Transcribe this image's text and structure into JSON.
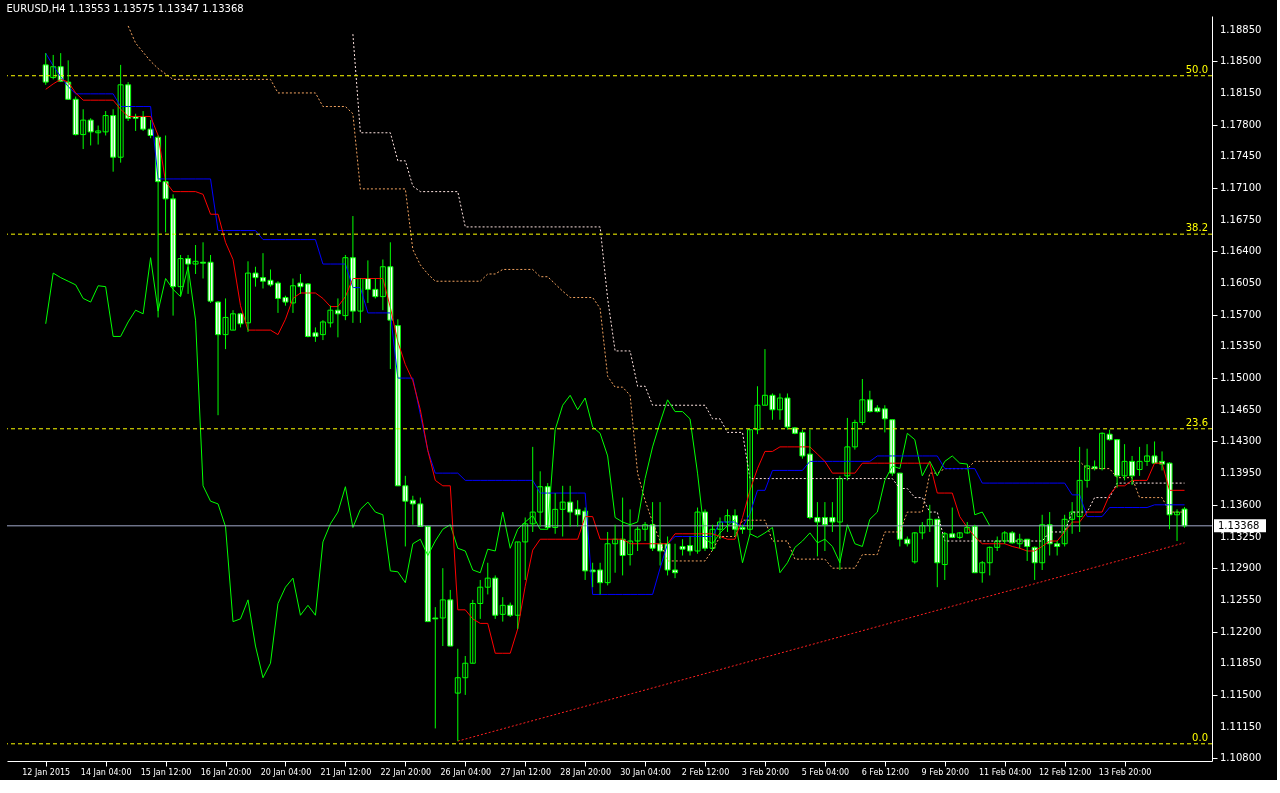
{
  "chart_data": {
    "type": "candlestick",
    "title": "EURUSD,H4  1.13553 1.13575 1.13347 1.13368",
    "categories": [
      "12 Jan 2015",
      null,
      null,
      null,
      null,
      null,
      null,
      null,
      "14 Jan 04:00",
      null,
      null,
      null,
      null,
      null,
      null,
      null,
      "15 Jan 12:00",
      null,
      null,
      null,
      null,
      null,
      null,
      null,
      "16 Jan 20:00",
      null,
      null,
      null,
      null,
      null,
      null,
      null,
      "20 Jan 04:00",
      null,
      null,
      null,
      null,
      null,
      null,
      null,
      "21 Jan 12:00",
      null,
      null,
      null,
      null,
      null,
      null,
      null,
      "22 Jan 20:00",
      null,
      null,
      null,
      null,
      null,
      null,
      null,
      "26 Jan 04:00",
      null,
      null,
      null,
      null,
      null,
      null,
      null,
      "27 Jan 12:00",
      null,
      null,
      null,
      null,
      null,
      null,
      null,
      "28 Jan 20:00",
      null,
      null,
      null,
      null,
      null,
      null,
      null,
      "30 Jan 04:00",
      null,
      null,
      null,
      null,
      null,
      null,
      null,
      "2 Feb 12:00",
      null,
      null,
      null,
      null,
      null,
      null,
      null,
      "3 Feb 20:00",
      null,
      null,
      null,
      null,
      null,
      null,
      null,
      "5 Feb 04:00",
      null,
      null,
      null,
      null,
      null,
      null,
      null,
      "6 Feb 12:00",
      null,
      null,
      null,
      null,
      null,
      null,
      null,
      "9 Feb 20:00",
      null,
      null,
      null,
      null,
      null,
      null,
      null,
      "11 Feb 04:00",
      null,
      null,
      null,
      null,
      null,
      null,
      null,
      "12 Feb 12:00",
      null,
      null,
      null,
      null,
      null,
      null,
      null,
      "13 Feb 20:00",
      null,
      null,
      null,
      null,
      null,
      null,
      null,
      null
    ],
    "ohlc": [
      [
        1.1846,
        1.1859,
        1.1824,
        1.1827
      ],
      [
        1.1832,
        1.1857,
        1.183,
        1.1844
      ],
      [
        1.1844,
        1.1859,
        1.1827,
        1.1828
      ],
      [
        1.1827,
        1.1851,
        1.1808,
        1.1808
      ],
      [
        1.1808,
        1.1811,
        1.1768,
        1.1769
      ],
      [
        1.1769,
        1.1797,
        1.1753,
        1.1785
      ],
      [
        1.1785,
        1.1787,
        1.1757,
        1.1772
      ],
      [
        1.1771,
        1.1779,
        1.1758,
        1.1773
      ],
      [
        1.1772,
        1.1795,
        1.1768,
        1.179
      ],
      [
        1.179,
        1.1797,
        1.1728,
        1.1744
      ],
      [
        1.1744,
        1.1846,
        1.1738,
        1.1824
      ],
      [
        1.1824,
        1.1827,
        1.1784,
        1.1787
      ],
      [
        1.1789,
        1.1792,
        1.1773,
        1.1787
      ],
      [
        1.1789,
        1.1795,
        1.1773,
        1.1775
      ],
      [
        1.1775,
        1.1785,
        1.1765,
        1.1768
      ],
      [
        1.1766,
        1.1768,
        1.1567,
        1.1717
      ],
      [
        1.1717,
        1.1768,
        1.1661,
        1.1698
      ],
      [
        1.1698,
        1.1703,
        1.1569,
        1.1601
      ],
      [
        1.1601,
        1.1636,
        1.1591,
        1.1632
      ],
      [
        1.1632,
        1.1636,
        1.1593,
        1.1626
      ],
      [
        1.1626,
        1.1647,
        1.1615,
        1.1629
      ],
      [
        1.1628,
        1.165,
        1.161,
        1.1627
      ],
      [
        1.1628,
        1.1636,
        1.1583,
        1.1585
      ],
      [
        1.1584,
        1.1585,
        1.1459,
        1.1548
      ],
      [
        1.1548,
        1.1588,
        1.1532,
        1.1567
      ],
      [
        1.1553,
        1.1575,
        1.1553,
        1.1571
      ],
      [
        1.1571,
        1.1572,
        1.1556,
        1.156
      ],
      [
        1.1561,
        1.1629,
        1.1551,
        1.1616
      ],
      [
        1.1616,
        1.1623,
        1.1601,
        1.1611
      ],
      [
        1.1611,
        1.1638,
        1.1599,
        1.1607
      ],
      [
        1.1608,
        1.162,
        1.1601,
        1.1603
      ],
      [
        1.1605,
        1.1607,
        1.1572,
        1.1588
      ],
      [
        1.1589,
        1.1591,
        1.158,
        1.1584
      ],
      [
        1.1583,
        1.161,
        1.1572,
        1.1602
      ],
      [
        1.1605,
        1.1615,
        1.1593,
        1.1601
      ],
      [
        1.1604,
        1.1605,
        1.1545,
        1.1546
      ],
      [
        1.155,
        1.1556,
        1.154,
        1.1546
      ],
      [
        1.1548,
        1.1564,
        1.1542,
        1.1562
      ],
      [
        1.1561,
        1.158,
        1.1556,
        1.1575
      ],
      [
        1.1575,
        1.1588,
        1.1545,
        1.1571
      ],
      [
        1.1569,
        1.1636,
        1.1564,
        1.1633
      ],
      [
        1.1633,
        1.1679,
        1.1561,
        1.1574
      ],
      [
        1.1574,
        1.161,
        1.1561,
        1.161
      ],
      [
        1.161,
        1.163,
        1.1583,
        1.1598
      ],
      [
        1.1598,
        1.161,
        1.1588,
        1.159
      ],
      [
        1.159,
        1.1631,
        1.1575,
        1.1623
      ],
      [
        1.1623,
        1.165,
        1.151,
        1.1564
      ],
      [
        1.1558,
        1.1565,
        1.1381,
        1.1381
      ],
      [
        1.1381,
        1.1392,
        1.1314,
        1.1364
      ],
      [
        1.1365,
        1.137,
        1.1338,
        1.1361
      ],
      [
        1.1361,
        1.1368,
        1.1336,
        1.1336
      ],
      [
        1.1336,
        1.1337,
        1.1231,
        1.1231
      ],
      [
        1.1235,
        1.1247,
        1.1113,
        1.1234
      ],
      [
        1.1235,
        1.129,
        1.1204,
        1.1255
      ],
      [
        1.1255,
        1.1266,
        1.1204,
        1.1204
      ],
      [
        1.1152,
        1.1201,
        1.1099,
        1.1169
      ],
      [
        1.1169,
        1.1193,
        1.115,
        1.1185
      ],
      [
        1.1185,
        1.1255,
        1.1185,
        1.1251
      ],
      [
        1.1251,
        1.1277,
        1.1234,
        1.1269
      ],
      [
        1.1269,
        1.1296,
        1.1261,
        1.1279
      ],
      [
        1.1279,
        1.1282,
        1.1234,
        1.1238
      ],
      [
        1.1239,
        1.1258,
        1.1231,
        1.1249
      ],
      [
        1.1249,
        1.1252,
        1.1236,
        1.1238
      ],
      [
        1.1238,
        1.1319,
        1.1223,
        1.1319
      ],
      [
        1.1319,
        1.1346,
        1.1277,
        1.1339
      ],
      [
        1.1339,
        1.1424,
        1.133,
        1.1352
      ],
      [
        1.1352,
        1.1397,
        1.1336,
        1.138
      ],
      [
        1.138,
        1.1384,
        1.1333,
        1.1335
      ],
      [
        1.1335,
        1.1373,
        1.1328,
        1.1355
      ],
      [
        1.1355,
        1.1381,
        1.1325,
        1.1363
      ],
      [
        1.1363,
        1.1381,
        1.1336,
        1.1352
      ],
      [
        1.1355,
        1.1365,
        1.1336,
        1.1349
      ],
      [
        1.1353,
        1.1357,
        1.1277,
        1.1287
      ],
      [
        1.1288,
        1.1296,
        1.1269,
        1.1286
      ],
      [
        1.1288,
        1.1296,
        1.1261,
        1.1274
      ],
      [
        1.1274,
        1.133,
        1.1271,
        1.1317
      ],
      [
        1.1317,
        1.1338,
        1.1285,
        1.1322
      ],
      [
        1.1322,
        1.1368,
        1.1282,
        1.1304
      ],
      [
        1.1305,
        1.1355,
        1.1293,
        1.132
      ],
      [
        1.132,
        1.1336,
        1.1309,
        1.1333
      ],
      [
        1.1333,
        1.1341,
        1.132,
        1.1338
      ],
      [
        1.1338,
        1.1363,
        1.1309,
        1.1312
      ],
      [
        1.1317,
        1.1363,
        1.1293,
        1.1309
      ],
      [
        1.1317,
        1.1325,
        1.1282,
        1.1288
      ],
      [
        1.1288,
        1.1317,
        1.1279,
        1.1285
      ],
      [
        1.1314,
        1.1322,
        1.1304,
        1.1311
      ],
      [
        1.1315,
        1.1325,
        1.1304,
        1.1309
      ],
      [
        1.1309,
        1.1357,
        1.1306,
        1.1352
      ],
      [
        1.1352,
        1.1355,
        1.1309,
        1.1312
      ],
      [
        1.1312,
        1.1338,
        1.1309,
        1.1333
      ],
      [
        1.1333,
        1.1346,
        1.1322,
        1.1341
      ],
      [
        1.1341,
        1.1355,
        1.133,
        1.1348
      ],
      [
        1.1348,
        1.1355,
        1.1325,
        1.1333
      ],
      [
        1.1335,
        1.1338,
        1.1328,
        1.1333
      ],
      [
        1.1333,
        1.1443,
        1.1328,
        1.1443
      ],
      [
        1.1443,
        1.1491,
        1.1438,
        1.147
      ],
      [
        1.147,
        1.1532,
        1.147,
        1.1481
      ],
      [
        1.1481,
        1.1483,
        1.1454,
        1.1465
      ],
      [
        1.1465,
        1.1483,
        1.1454,
        1.1478
      ],
      [
        1.1478,
        1.1483,
        1.1443,
        1.1446
      ],
      [
        1.1445,
        1.1446,
        1.1438,
        1.1439
      ],
      [
        1.144,
        1.1443,
        1.1411,
        1.1414
      ],
      [
        1.1416,
        1.1443,
        1.1344,
        1.1346
      ],
      [
        1.1346,
        1.1363,
        1.1303,
        1.1341
      ],
      [
        1.1346,
        1.1363,
        1.1309,
        1.1338
      ],
      [
        1.1346,
        1.1363,
        1.133,
        1.1341
      ],
      [
        1.1341,
        1.1392,
        1.1288,
        1.1389
      ],
      [
        1.1392,
        1.1456,
        1.1387,
        1.1424
      ],
      [
        1.1424,
        1.1454,
        1.1421,
        1.1451
      ],
      [
        1.1451,
        1.1499,
        1.1448,
        1.1476
      ],
      [
        1.1476,
        1.1486,
        1.1462,
        1.1463
      ],
      [
        1.1467,
        1.147,
        1.1462,
        1.1463
      ],
      [
        1.1466,
        1.147,
        1.144,
        1.1455
      ],
      [
        1.1454,
        1.1454,
        1.1392,
        1.1395
      ],
      [
        1.1395,
        1.1395,
        1.1314,
        1.1322
      ],
      [
        1.1322,
        1.1325,
        1.1314,
        1.1317
      ],
      [
        1.1297,
        1.133,
        1.1295,
        1.1329
      ],
      [
        1.1329,
        1.1341,
        1.1322,
        1.1337
      ],
      [
        1.1337,
        1.136,
        1.133,
        1.1344
      ],
      [
        1.1344,
        1.1344,
        1.1269,
        1.1296
      ],
      [
        1.1294,
        1.133,
        1.1277,
        1.1328
      ],
      [
        1.1328,
        1.1357,
        1.1324,
        1.1324
      ],
      [
        1.1324,
        1.133,
        1.1322,
        1.1329
      ],
      [
        1.1329,
        1.1341,
        1.1328,
        1.1335
      ],
      [
        1.1336,
        1.1338,
        1.1285,
        1.1285
      ],
      [
        1.1285,
        1.1298,
        1.1274,
        1.1296
      ],
      [
        1.1296,
        1.1314,
        1.1282,
        1.1313
      ],
      [
        1.1313,
        1.1325,
        1.1309,
        1.132
      ],
      [
        1.132,
        1.1331,
        1.1317,
        1.1329
      ],
      [
        1.1329,
        1.1331,
        1.1317,
        1.1318
      ],
      [
        1.1317,
        1.1328,
        1.1312,
        1.1322
      ],
      [
        1.1322,
        1.1322,
        1.1298,
        1.1314
      ],
      [
        1.1313,
        1.1314,
        1.1277,
        1.1296
      ],
      [
        1.1296,
        1.1349,
        1.1288,
        1.1338
      ],
      [
        1.1338,
        1.1352,
        1.1304,
        1.1317
      ],
      [
        1.1317,
        1.132,
        1.1304,
        1.1314
      ],
      [
        1.1317,
        1.1349,
        1.1314,
        1.1344
      ],
      [
        1.1344,
        1.1363,
        1.1328,
        1.1352
      ],
      [
        1.1347,
        1.1424,
        1.133,
        1.1387
      ],
      [
        1.1387,
        1.1422,
        1.1379,
        1.1403
      ],
      [
        1.1402,
        1.1409,
        1.1398,
        1.14
      ],
      [
        1.14,
        1.144,
        1.1398,
        1.1439
      ],
      [
        1.1438,
        1.1443,
        1.1431,
        1.1432
      ],
      [
        1.1432,
        1.1432,
        1.1379,
        1.1392
      ],
      [
        1.1392,
        1.1427,
        1.1387,
        1.1408
      ],
      [
        1.1408,
        1.1414,
        1.1382,
        1.1392
      ],
      [
        1.1399,
        1.1424,
        1.1392,
        1.1408
      ],
      [
        1.1408,
        1.1427,
        1.1403,
        1.1414
      ],
      [
        1.1414,
        1.143,
        1.1406,
        1.1406
      ],
      [
        1.1408,
        1.1419,
        1.1398,
        1.1405
      ],
      [
        1.1406,
        1.1407,
        1.1333,
        1.1349
      ],
      [
        1.1349,
        1.1355,
        1.132,
        1.1352
      ],
      [
        1.13553,
        1.13575,
        1.13347,
        1.13368
      ]
    ],
    "color": "#00ff00",
    "series": [
      {
        "type": "line",
        "color": "#f4a460",
        "line_style": "dotted",
        "values": [
          null,
          null,
          null,
          null,
          null,
          null,
          null,
          null,
          null,
          null,
          null,
          1.1889,
          1.187,
          1.186,
          1.185,
          1.1842,
          1.1836,
          1.183,
          1.183,
          1.183,
          1.183,
          1.183,
          1.183,
          1.183,
          1.183,
          1.183,
          1.183,
          1.183,
          1.183,
          1.183,
          1.183,
          1.1815,
          1.1815,
          1.1815,
          1.1815,
          1.1815,
          1.1815,
          1.18,
          1.18,
          1.18,
          1.18,
          1.1792,
          1.1709,
          1.1709,
          1.1709,
          1.1709,
          1.1709,
          1.1709,
          1.1709,
          1.1642,
          1.1625,
          1.1615,
          1.1607,
          1.1607,
          1.1607,
          1.1607,
          1.1607,
          1.1607,
          1.1607,
          1.1615,
          1.1615,
          1.162,
          1.162,
          1.162,
          1.162,
          1.162,
          1.1612,
          1.1612,
          1.1604,
          1.1596,
          1.1589,
          1.1589,
          1.1589,
          1.1589,
          1.1577,
          1.1502,
          1.149,
          1.149,
          1.1481,
          1.1395,
          1.1365,
          1.1341,
          1.132,
          1.1298,
          1.1298,
          1.1298,
          1.1298,
          1.1298,
          1.1298,
          1.131,
          1.1325,
          1.1325,
          1.1325,
          1.1343,
          1.1343,
          1.1343,
          1.1343,
          1.132,
          1.132,
          1.132,
          1.13,
          1.13,
          1.13,
          1.13,
          1.13,
          1.129,
          1.129,
          1.129,
          1.129,
          1.1305,
          1.1305,
          1.1305,
          1.133,
          1.133,
          1.133,
          1.1352,
          1.1352,
          1.1352,
          1.1395,
          1.1395,
          1.14,
          1.14,
          1.14,
          1.14,
          1.1408,
          1.1408,
          1.1408,
          1.1408,
          1.1408,
          1.1408,
          1.1408,
          1.1408,
          1.1408,
          1.1408,
          1.1408,
          1.1408,
          1.1408,
          1.1408,
          1.1408,
          1.14,
          1.14,
          1.14,
          1.14,
          1.139,
          1.139,
          1.139,
          1.1368,
          1.1368,
          1.1368,
          1.1368,
          1.1352,
          1.1352,
          1.1352
        ]
      },
      {
        "type": "line",
        "color": "#ffe4e1",
        "line_style": "dotted",
        "values": [
          null,
          null,
          null,
          null,
          null,
          null,
          null,
          null,
          null,
          null,
          null,
          null,
          null,
          null,
          null,
          null,
          null,
          null,
          null,
          null,
          null,
          null,
          null,
          null,
          null,
          null,
          null,
          null,
          null,
          null,
          null,
          null,
          null,
          null,
          null,
          null,
          null,
          null,
          null,
          null,
          null,
          1.188,
          1.1771,
          1.1771,
          1.1771,
          1.1771,
          1.1771,
          1.174,
          1.174,
          1.1712,
          1.1706,
          1.1706,
          1.1706,
          1.1706,
          1.1706,
          1.1706,
          1.1667,
          1.1667,
          1.1667,
          1.1667,
          1.1667,
          1.1667,
          1.1667,
          1.1667,
          1.1667,
          1.1667,
          1.1667,
          1.1667,
          1.1667,
          1.1667,
          1.1667,
          1.1667,
          1.1667,
          1.1667,
          1.1667,
          1.1588,
          1.153,
          1.153,
          1.153,
          1.1491,
          1.1491,
          1.147,
          1.147,
          1.147,
          1.147,
          1.147,
          1.147,
          1.147,
          1.147,
          1.1455,
          1.1455,
          1.144,
          1.144,
          1.144,
          1.1389,
          1.1389,
          1.1389,
          1.1389,
          1.1389,
          1.1389,
          1.1389,
          1.1389,
          1.1389,
          1.1389,
          1.1389,
          1.1389,
          1.1389,
          1.1389,
          1.1389,
          1.1389,
          1.1389,
          1.1389,
          1.1389,
          1.1389,
          1.1378,
          1.1378,
          1.1368,
          1.1368,
          1.1352,
          1.1352,
          1.132,
          1.132,
          1.132,
          1.132,
          1.132,
          1.132,
          1.132,
          1.132,
          1.132,
          1.132,
          1.132,
          1.132,
          1.132,
          1.132,
          1.133,
          1.133,
          1.133,
          1.1352,
          1.1352,
          1.1352,
          1.1368,
          1.1368,
          1.1368,
          1.1384,
          1.1384,
          1.1384,
          1.1384,
          1.1384,
          1.1384,
          1.1384,
          1.1384,
          1.1384,
          1.1384
        ]
      },
      {
        "type": "line",
        "color": "#00ff00",
        "line_style": "solid",
        "values": [
          1.156,
          1.1616,
          1.1611,
          1.1607,
          1.1603,
          1.1588,
          1.1584,
          1.1602,
          1.1601,
          1.1546,
          1.1546,
          1.1562,
          1.1575,
          1.1571,
          1.1633,
          1.1574,
          1.161,
          1.1598,
          1.159,
          1.1623,
          1.1564,
          1.1381,
          1.1364,
          1.1361,
          1.1336,
          1.1231,
          1.1234,
          1.1255,
          1.1204,
          1.1169,
          1.1185,
          1.1251,
          1.1269,
          1.1279,
          1.1238,
          1.1249,
          1.1238,
          1.1319,
          1.1339,
          1.1352,
          1.138,
          1.1335,
          1.1355,
          1.1363,
          1.1352,
          1.1349,
          1.1287,
          1.1286,
          1.1274,
          1.1317,
          1.1322,
          1.1304,
          1.132,
          1.1333,
          1.1338,
          1.1312,
          1.1309,
          1.1288,
          1.1285,
          1.1311,
          1.1309,
          1.1352,
          1.1312,
          1.1333,
          1.1341,
          1.1348,
          1.1333,
          1.1333,
          1.1443,
          1.147,
          1.1481,
          1.1465,
          1.1478,
          1.1446,
          1.1439,
          1.1414,
          1.1346,
          1.1341,
          1.1338,
          1.1341,
          1.1389,
          1.1424,
          1.1451,
          1.1476,
          1.1463,
          1.1463,
          1.1455,
          1.1395,
          1.1322,
          1.1317,
          1.1329,
          1.1337,
          1.1344,
          1.1296,
          1.1328,
          1.1324,
          1.1329,
          1.1335,
          1.1285,
          1.1296,
          1.1313,
          1.132,
          1.1329,
          1.1318,
          1.1322,
          1.1314,
          1.1296,
          1.1338,
          1.1317,
          1.1314,
          1.1344,
          1.1352,
          1.1387,
          1.1403,
          1.14,
          1.1439,
          1.1432,
          1.1392,
          1.1408,
          1.1392,
          1.1408,
          1.1414,
          1.1406,
          1.1405,
          1.1349,
          1.1352,
          1.1337,
          null,
          null,
          null,
          null,
          null,
          null,
          null,
          null,
          null,
          null,
          null,
          null,
          null,
          null,
          null,
          null,
          null,
          null,
          null,
          null,
          null,
          null,
          null,
          null,
          null,
          null
        ]
      },
      {
        "type": "line",
        "color": "#0000ff",
        "line_style": "solid",
        "values": [
          1.1859,
          1.1845,
          1.1833,
          1.1822,
          1.1814,
          1.1814,
          1.1814,
          1.1814,
          1.1814,
          1.1814,
          1.18,
          1.18,
          1.18,
          1.18,
          1.18,
          1.172,
          1.172,
          1.172,
          1.172,
          1.172,
          1.172,
          1.172,
          1.172,
          1.1663,
          1.1663,
          1.1663,
          1.1663,
          1.1663,
          1.1663,
          1.1653,
          1.1653,
          1.1653,
          1.1653,
          1.1653,
          1.1653,
          1.1653,
          1.1653,
          1.1626,
          1.1626,
          1.1626,
          1.1626,
          1.16,
          1.16,
          1.1572,
          1.1572,
          1.1572,
          1.1572,
          1.15,
          1.15,
          1.15,
          1.146,
          1.142,
          1.1395,
          1.1395,
          1.1395,
          1.1395,
          1.1387,
          1.1387,
          1.1387,
          1.1387,
          1.1387,
          1.1387,
          1.1387,
          1.1387,
          1.1387,
          1.1387,
          1.1373,
          1.1373,
          1.1373,
          1.1373,
          1.1373,
          1.1373,
          1.1373,
          1.1261,
          1.1261,
          1.1261,
          1.1261,
          1.1261,
          1.1261,
          1.1261,
          1.1261,
          1.1261,
          1.129,
          1.1317,
          1.1325,
          1.1325,
          1.1325,
          1.1325,
          1.1325,
          1.1325,
          1.1341,
          1.1341,
          1.1341,
          1.1335,
          1.135,
          1.1376,
          1.1376,
          1.1398,
          1.1398,
          1.1398,
          1.1398,
          1.1398,
          1.1408,
          1.1408,
          1.1408,
          1.1408,
          1.1408,
          1.1408,
          1.1408,
          1.1408,
          1.1408,
          1.1414,
          1.1414,
          1.1414,
          1.1414,
          1.1414,
          1.1414,
          1.1414,
          1.1414,
          1.1414,
          1.14,
          1.14,
          1.14,
          1.14,
          1.14,
          1.1384,
          1.1384,
          1.1384,
          1.1384,
          1.1384,
          1.1384,
          1.1384,
          1.1384,
          1.1384,
          1.1384,
          1.1384,
          1.1384,
          1.1371,
          1.1371,
          1.1347,
          1.1347,
          1.1347,
          1.1357,
          1.1357,
          1.1357,
          1.1357,
          1.1357,
          1.1357,
          1.136,
          1.136,
          1.136,
          1.136,
          1.136
        ]
      },
      {
        "type": "line",
        "color": "#ff0000",
        "line_style": "solid",
        "values": [
          1.1819,
          1.1825,
          1.183,
          1.1827,
          1.1815,
          1.1807,
          1.1807,
          1.1807,
          1.1807,
          1.1807,
          1.1797,
          1.1789,
          1.1789,
          1.1789,
          1.1789,
          1.1768,
          1.1717,
          1.1706,
          1.1706,
          1.1706,
          1.1706,
          1.1703,
          1.1681,
          1.1681,
          1.165,
          1.1631,
          1.158,
          1.1553,
          1.1553,
          1.1553,
          1.1553,
          1.1548,
          1.1565,
          1.1588,
          1.1594,
          1.1594,
          1.1594,
          1.1588,
          1.1579,
          1.1579,
          1.159,
          1.161,
          1.161,
          1.161,
          1.161,
          1.161,
          1.1578,
          1.154,
          1.1515,
          1.1497,
          1.1465,
          1.142,
          1.1387,
          1.1381,
          1.1381,
          1.1244,
          1.1244,
          1.1234,
          1.1229,
          1.1229,
          1.1196,
          1.1196,
          1.1196,
          1.1223,
          1.127,
          1.131,
          1.1322,
          1.1322,
          1.1322,
          1.1322,
          1.1322,
          1.1322,
          1.1347,
          1.1347,
          1.1322,
          1.1322,
          1.1322,
          1.1322,
          1.1317,
          1.1317,
          1.1317,
          1.1317,
          1.1317,
          1.1317,
          1.1328,
          1.1328,
          1.1328,
          1.1328,
          1.1328,
          1.1328,
          1.1325,
          1.1322,
          1.1322,
          1.1346,
          1.1376,
          1.14,
          1.1419,
          1.1419,
          1.1424,
          1.1424,
          1.1424,
          1.1424,
          1.1424,
          1.1416,
          1.1408,
          1.1395,
          1.1395,
          1.1395,
          1.1395,
          1.1406,
          1.1406,
          1.1406,
          1.1406,
          1.1406,
          1.1406,
          1.1406,
          1.1406,
          1.1406,
          1.1406,
          1.1373,
          1.1373,
          1.1373,
          1.1347,
          1.1335,
          1.1325,
          1.1317,
          1.1317,
          1.1317,
          1.1317,
          1.1314,
          1.1312,
          1.1309,
          1.1309,
          1.1314,
          1.132,
          1.132,
          1.133,
          1.1341,
          1.1341,
          1.1352,
          1.1352,
          1.1352,
          1.1371,
          1.1381,
          1.1381,
          1.1387,
          1.1387,
          1.1387,
          1.1406,
          1.1406,
          1.1376,
          1.1376,
          1.1376
        ]
      },
      {
        "type": "line",
        "color": "#ff2020",
        "line_style": "dotted",
        "values": [
          null,
          null,
          null,
          null,
          null,
          null,
          null,
          null,
          null,
          null,
          null,
          null,
          null,
          null,
          null,
          null,
          null,
          null,
          null,
          null,
          null,
          null,
          null,
          null,
          null,
          null,
          null,
          null,
          null,
          null,
          null,
          null,
          null,
          null,
          null,
          null,
          null,
          null,
          null,
          null,
          null,
          null,
          null,
          null,
          null,
          null,
          null,
          null,
          null,
          null,
          null,
          null,
          null,
          null,
          null,
          1.1099,
          null,
          null,
          null,
          null,
          null,
          null,
          null,
          null,
          null,
          null,
          null,
          null,
          null,
          null,
          null,
          null,
          null,
          null,
          null,
          null,
          null,
          null,
          null,
          null,
          null,
          null,
          null,
          null,
          null,
          null,
          null,
          null,
          null,
          null,
          null,
          null,
          null,
          null,
          null,
          null,
          null,
          null,
          null,
          null,
          null,
          null,
          null,
          null,
          null,
          null,
          null,
          null,
          null,
          null,
          null,
          null,
          null,
          null,
          null,
          null,
          null,
          null,
          null,
          null,
          null,
          null,
          null,
          null,
          null,
          null,
          null,
          null,
          null,
          null,
          null,
          null,
          null,
          null,
          null,
          null,
          null,
          null,
          null,
          null,
          null,
          null,
          null,
          null,
          null,
          null,
          null,
          null,
          null,
          null,
          null,
          null,
          1.1318
        ]
      }
    ],
    "ylim": [
      1.1077,
      1.19
    ],
    "yticks": [
      {
        "value": 1.108,
        "label": "1.10800"
      },
      {
        "value": 1.1115,
        "label": "1.11150"
      },
      {
        "value": 1.115,
        "label": "1.11500"
      },
      {
        "value": 1.1185,
        "label": "1.11850"
      },
      {
        "value": 1.122,
        "label": "1.12200"
      },
      {
        "value": 1.1255,
        "label": "1.12550"
      },
      {
        "value": 1.129,
        "label": "1.12900"
      },
      {
        "value": 1.1325,
        "label": "1.13250"
      },
      {
        "value": 1.136,
        "label": "1.13600"
      },
      {
        "value": 1.1395,
        "label": "1.13950"
      },
      {
        "value": 1.143,
        "label": "1.14300"
      },
      {
        "value": 1.1465,
        "label": "1.14650"
      },
      {
        "value": 1.15,
        "label": "1.15000"
      },
      {
        "value": 1.1535,
        "label": "1.15350"
      },
      {
        "value": 1.157,
        "label": "1.15700"
      },
      {
        "value": 1.1605,
        "label": "1.16050"
      },
      {
        "value": 1.164,
        "label": "1.16400"
      },
      {
        "value": 1.1675,
        "label": "1.16750"
      },
      {
        "value": 1.171,
        "label": "1.17100"
      },
      {
        "value": 1.1745,
        "label": "1.17450"
      },
      {
        "value": 1.178,
        "label": "1.17800"
      },
      {
        "value": 1.1815,
        "label": "1.18150"
      },
      {
        "value": 1.185,
        "label": "1.18500"
      },
      {
        "value": 1.1885,
        "label": "1.18850"
      }
    ],
    "ref_lines": [
      {
        "axis": "y",
        "value": 1.1096,
        "color": "#ffff00",
        "line_style": "dashed"
      },
      {
        "axis": "y",
        "value": 1.1444,
        "color": "#ffff00",
        "line_style": "dashed"
      },
      {
        "axis": "y",
        "value": 1.1659,
        "color": "#ffff00",
        "line_style": "dashed"
      },
      {
        "axis": "y",
        "value": 1.1834,
        "color": "#ffff00",
        "line_style": "dashed"
      },
      {
        "axis": "y",
        "value": 1.13368,
        "label": "1.13368",
        "color": "#a0a8c8",
        "line_style": "solid"
      }
    ],
    "annotations": [
      {
        "text": "0.0",
        "y": 1.1096
      },
      {
        "text": "23.6",
        "y": 1.1444
      },
      {
        "text": "38.2",
        "y": 1.1659
      },
      {
        "text": "50.0",
        "y": 1.1834
      }
    ],
    "grid": false
  }
}
